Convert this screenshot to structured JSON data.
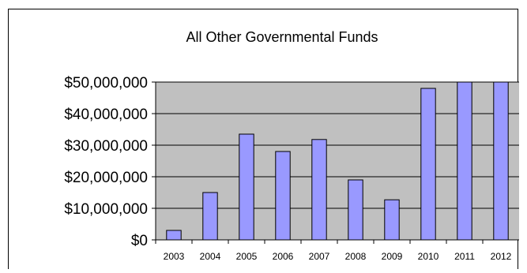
{
  "chart_data": {
    "type": "bar",
    "title": "All Other Governmental Funds",
    "categories": [
      "2003",
      "2004",
      "2005",
      "2006",
      "2007",
      "2008",
      "2009",
      "2010",
      "2011",
      "2012"
    ],
    "values": [
      3000000,
      15000000,
      33500000,
      28000000,
      31800000,
      19000000,
      12700000,
      48000000,
      50000000,
      50000000
    ],
    "yticks": [
      "$0",
      "$10,000,000",
      "$20,000,000",
      "$30,000,000",
      "$40,000,000",
      "$50,000,000"
    ],
    "ylim": [
      0,
      50000000
    ],
    "grid": true,
    "bar_color": "#9999ff",
    "plot_bg": "#c0c0c0",
    "xlabel": "",
    "ylabel": ""
  }
}
